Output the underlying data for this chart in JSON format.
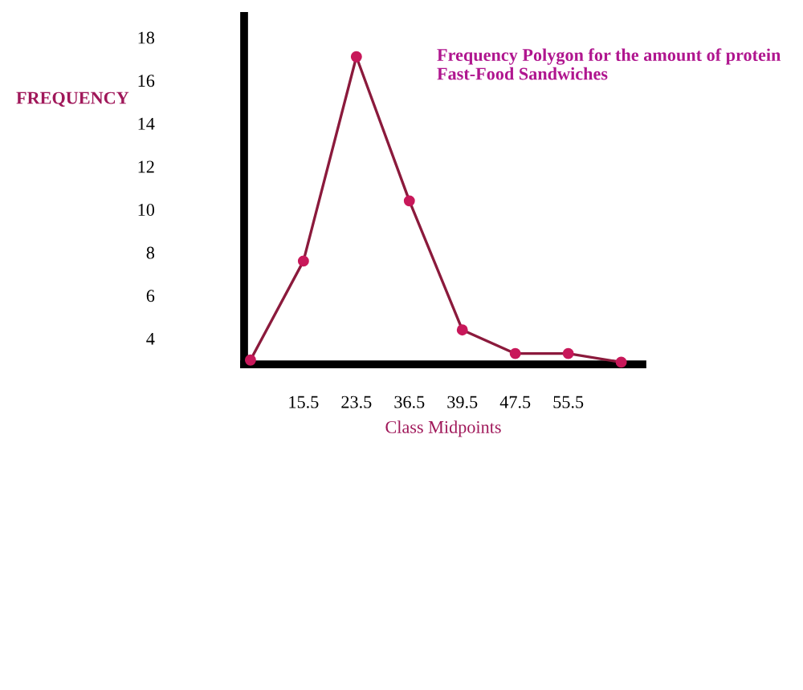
{
  "chart_data": {
    "type": "line",
    "title": "Frequency Polygon for the amount of protein Fast-Food Sandwiches",
    "xlabel": "Class Midpoints",
    "ylabel": "FREQUENCY",
    "categories": [
      null,
      "15.5",
      "23.5",
      "36.5",
      "39.5",
      "47.5",
      "55.5",
      null
    ],
    "series": [
      {
        "color": "#8b1a3c",
        "values": [
          3.0,
          7.6,
          17.1,
          10.4,
          4.4,
          3.3,
          3.3,
          2.9
        ]
      }
    ],
    "ylim": [
      2.8,
      19
    ],
    "yticks": [
      4,
      6,
      8,
      10,
      12,
      14,
      16,
      18
    ],
    "marker": "circle",
    "line_style": "solid",
    "grid": false,
    "legend": false
  }
}
